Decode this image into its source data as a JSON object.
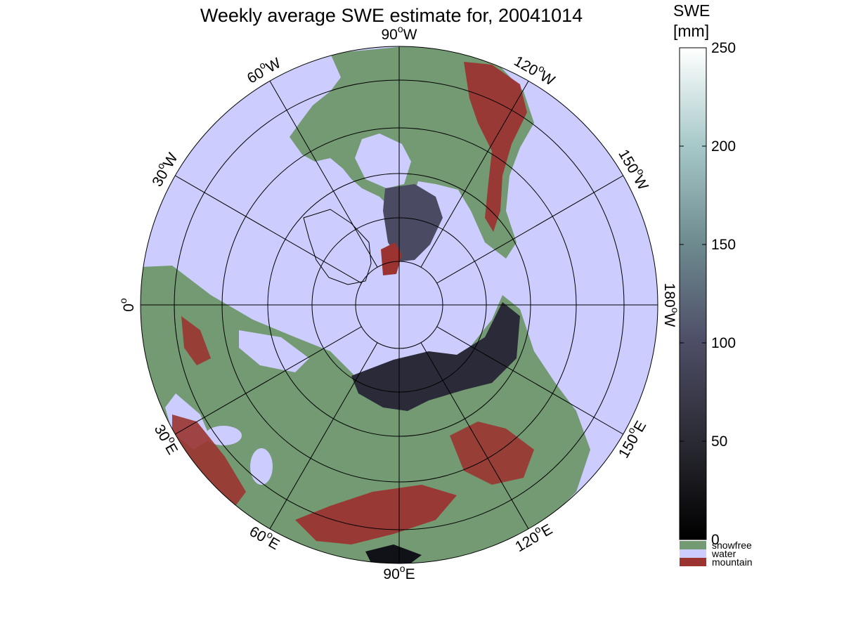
{
  "figure": {
    "title": "Weekly average SWE estimate for, 20041014",
    "colors": {
      "water": "#ccccff",
      "snowfree": "#739a72",
      "mountain": "#9b3431",
      "snow_low": "#1e1e27",
      "snow_mid": "#4a4a63",
      "grid": "#000000"
    }
  },
  "map": {
    "projection": "north-polar stereographic",
    "longitude_labels": [
      {
        "deg": "90",
        "hemi": "W"
      },
      {
        "deg": "120",
        "hemi": "W"
      },
      {
        "deg": "150",
        "hemi": "W"
      },
      {
        "deg": "180",
        "hemi": "W"
      },
      {
        "deg": "150",
        "hemi": "E"
      },
      {
        "deg": "120",
        "hemi": "E"
      },
      {
        "deg": "90",
        "hemi": "E"
      },
      {
        "deg": "60",
        "hemi": "E"
      },
      {
        "deg": "30",
        "hemi": "E"
      },
      {
        "deg": "0",
        "hemi": ""
      },
      {
        "deg": "30",
        "hemi": "W"
      },
      {
        "deg": "60",
        "hemi": "W"
      }
    ],
    "degree_symbol": "o"
  },
  "colorbar": {
    "label_line1": "SWE",
    "label_line2": "[mm]",
    "range": [
      0,
      250
    ],
    "ticks": [
      "0",
      "50",
      "100",
      "150",
      "200",
      "250"
    ],
    "categories": [
      {
        "label": "snowfree",
        "color": "#739a72"
      },
      {
        "label": "water",
        "color": "#ccccff"
      },
      {
        "label": "mountain",
        "color": "#9b3431"
      }
    ]
  }
}
